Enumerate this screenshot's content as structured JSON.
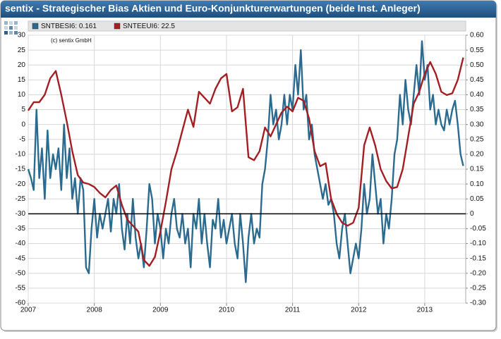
{
  "chart_data": {
    "type": "line",
    "title": "sentix - Strategischer Bias Aktien und Euro-Konjunkturerwartungen (beide Inst. Anleger)",
    "annotation": "(c) sentix GmbH",
    "xlim": [
      2007,
      2013.62
    ],
    "xticks": [
      2007,
      2008,
      2009,
      2010,
      2011,
      2012,
      2013
    ],
    "ylim": [
      -60,
      30
    ],
    "yticks": [
      30,
      25,
      20,
      15,
      10,
      5,
      0,
      -5,
      -10,
      -15,
      -20,
      -25,
      -30,
      -35,
      -40,
      -45,
      -50,
      -55,
      -60
    ],
    "y2lim": [
      -0.3,
      0.6
    ],
    "y2ticks": [
      {
        "value": 0.6,
        "label": "0.60"
      },
      {
        "value": 0.55,
        "label": "0.55"
      },
      {
        "value": 0.5,
        "label": "0.50"
      },
      {
        "value": 0.45,
        "label": "0.45"
      },
      {
        "value": 0.4,
        "label": "0.40"
      },
      {
        "value": 0.35,
        "label": "0.35"
      },
      {
        "value": 0.3,
        "label": "0.30"
      },
      {
        "value": 0.25,
        "label": "0.25"
      },
      {
        "value": 0.2,
        "label": "0.20"
      },
      {
        "value": 0.15,
        "label": "0.15"
      },
      {
        "value": 0.1,
        "label": "0.10"
      },
      {
        "value": 0.05,
        "label": "0.05"
      },
      {
        "value": 0,
        "label": "0"
      },
      {
        "value": -0.05,
        "label": "-0.05"
      },
      {
        "value": -0.1,
        "label": "-0.10"
      },
      {
        "value": -0.15,
        "label": "-0.15"
      },
      {
        "value": -0.2,
        "label": "-0.20"
      },
      {
        "value": -0.25,
        "label": "-0.25"
      },
      {
        "value": -0.3,
        "label": "-0.30"
      }
    ],
    "grid": true,
    "zero_line_y2": true,
    "series": [
      {
        "name": "SNTBESI6: 0.161",
        "color": "#2a6b8f",
        "axis": "y2",
        "x": [
          2007.0,
          2007.042,
          2007.083,
          2007.125,
          2007.167,
          2007.208,
          2007.25,
          2007.292,
          2007.333,
          2007.375,
          2007.417,
          2007.458,
          2007.5,
          2007.542,
          2007.583,
          2007.625,
          2007.667,
          2007.708,
          2007.75,
          2007.792,
          2007.833,
          2007.875,
          2007.917,
          2007.958,
          2008.0,
          2008.042,
          2008.083,
          2008.125,
          2008.167,
          2008.208,
          2008.25,
          2008.292,
          2008.333,
          2008.375,
          2008.417,
          2008.458,
          2008.5,
          2008.542,
          2008.583,
          2008.625,
          2008.667,
          2008.708,
          2008.75,
          2008.792,
          2008.833,
          2008.875,
          2008.917,
          2008.958,
          2009.0,
          2009.042,
          2009.083,
          2009.125,
          2009.167,
          2009.208,
          2009.25,
          2009.292,
          2009.333,
          2009.375,
          2009.417,
          2009.458,
          2009.5,
          2009.542,
          2009.583,
          2009.625,
          2009.667,
          2009.708,
          2009.75,
          2009.792,
          2009.833,
          2009.875,
          2009.917,
          2009.958,
          2010.0,
          2010.042,
          2010.083,
          2010.125,
          2010.167,
          2010.208,
          2010.25,
          2010.292,
          2010.333,
          2010.375,
          2010.417,
          2010.458,
          2010.5,
          2010.542,
          2010.583,
          2010.625,
          2010.667,
          2010.708,
          2010.75,
          2010.792,
          2010.833,
          2010.875,
          2010.917,
          2010.958,
          2011.0,
          2011.042,
          2011.083,
          2011.125,
          2011.167,
          2011.208,
          2011.25,
          2011.292,
          2011.333,
          2011.375,
          2011.417,
          2011.458,
          2011.5,
          2011.542,
          2011.583,
          2011.625,
          2011.667,
          2011.708,
          2011.75,
          2011.792,
          2011.833,
          2011.875,
          2011.917,
          2011.958,
          2012.0,
          2012.042,
          2012.083,
          2012.125,
          2012.167,
          2012.208,
          2012.25,
          2012.292,
          2012.333,
          2012.375,
          2012.417,
          2012.458,
          2012.5,
          2012.542,
          2012.583,
          2012.625,
          2012.667,
          2012.708,
          2012.75,
          2012.792,
          2012.833,
          2012.875,
          2012.917,
          2012.958,
          2013.0,
          2013.042,
          2013.083,
          2013.125,
          2013.167,
          2013.208,
          2013.25,
          2013.292,
          2013.333,
          2013.375,
          2013.417,
          2013.458,
          2013.5,
          2013.542,
          2013.583
        ],
        "values": [
          0.15,
          0.12,
          0.08,
          0.35,
          0.12,
          0.22,
          0.05,
          0.28,
          0.12,
          0.2,
          0.15,
          0.22,
          0.08,
          0.3,
          0.12,
          0.22,
          0.05,
          0.12,
          0.0,
          0.12,
          0.08,
          -0.18,
          -0.2,
          -0.05,
          0.05,
          -0.08,
          0.0,
          -0.05,
          0.0,
          0.05,
          -0.06,
          0.05,
          0.0,
          0.1,
          -0.05,
          -0.12,
          0.0,
          -0.1,
          0.05,
          -0.08,
          -0.15,
          -0.1,
          -0.18,
          -0.05,
          0.1,
          0.05,
          -0.1,
          0.0,
          -0.05,
          -0.15,
          -0.05,
          -0.1,
          0.0,
          0.05,
          -0.05,
          -0.08,
          0.0,
          -0.1,
          -0.05,
          -0.18,
          0.0,
          -0.05,
          0.05,
          -0.1,
          0.0,
          -0.1,
          -0.18,
          -0.02,
          -0.05,
          0.05,
          -0.08,
          -0.02,
          -0.1,
          -0.05,
          0.0,
          -0.1,
          -0.15,
          0.0,
          -0.1,
          -0.23,
          -0.08,
          0.0,
          -0.1,
          -0.05,
          -0.08,
          0.1,
          0.15,
          0.25,
          0.4,
          0.3,
          0.35,
          0.25,
          0.3,
          0.4,
          0.3,
          0.4,
          0.35,
          0.5,
          0.4,
          0.55,
          0.35,
          0.4,
          0.25,
          0.3,
          0.2,
          0.15,
          0.1,
          0.05,
          0.1,
          0.03,
          0.05,
          0.0,
          -0.1,
          -0.15,
          -0.05,
          0.0,
          -0.1,
          -0.2,
          -0.15,
          -0.1,
          -0.15,
          -0.05,
          0.1,
          0.0,
          0.05,
          0.2,
          0.1,
          0.0,
          0.05,
          -0.1,
          0.0,
          -0.05,
          0.05,
          0.2,
          0.25,
          0.4,
          0.3,
          0.45,
          0.35,
          0.3,
          0.4,
          0.5,
          0.4,
          0.58,
          0.45,
          0.5,
          0.35,
          0.4,
          0.3,
          0.35,
          0.3,
          0.28,
          0.35,
          0.3,
          0.35,
          0.38,
          0.3,
          0.2,
          0.161
        ]
      },
      {
        "name": "SNTEEUI6: 22.5",
        "color": "#a31f23",
        "axis": "y",
        "x": [
          2007.0,
          2007.083,
          2007.167,
          2007.25,
          2007.333,
          2007.417,
          2007.5,
          2007.583,
          2007.667,
          2007.75,
          2007.833,
          2007.917,
          2008.0,
          2008.083,
          2008.167,
          2008.25,
          2008.333,
          2008.417,
          2008.5,
          2008.583,
          2008.667,
          2008.75,
          2008.833,
          2008.917,
          2009.0,
          2009.083,
          2009.167,
          2009.25,
          2009.333,
          2009.417,
          2009.5,
          2009.583,
          2009.667,
          2009.75,
          2009.833,
          2009.917,
          2010.0,
          2010.083,
          2010.167,
          2010.25,
          2010.333,
          2010.417,
          2010.5,
          2010.583,
          2010.667,
          2010.75,
          2010.833,
          2010.917,
          2011.0,
          2011.083,
          2011.167,
          2011.25,
          2011.333,
          2011.417,
          2011.5,
          2011.583,
          2011.667,
          2011.75,
          2011.833,
          2011.917,
          2012.0,
          2012.083,
          2012.167,
          2012.25,
          2012.333,
          2012.417,
          2012.5,
          2012.583,
          2012.667,
          2012.75,
          2012.833,
          2012.917,
          2013.0,
          2013.083,
          2013.167,
          2013.25,
          2013.333,
          2013.417,
          2013.5,
          2013.583
        ],
        "values": [
          4.7,
          7.5,
          7.5,
          10,
          15.5,
          18,
          10,
          1,
          -9,
          -17,
          -19.5,
          -20,
          -21,
          -23,
          -24.5,
          -22,
          -20.5,
          -27,
          -32,
          -34,
          -36,
          -45.5,
          -47.5,
          -44.5,
          -36,
          -26,
          -15,
          -9,
          -2,
          5,
          -0.8,
          11,
          9,
          7,
          12,
          15.5,
          17,
          4.4,
          5.8,
          12,
          -11,
          -12,
          -9,
          -1,
          -4,
          0,
          4,
          6,
          4.4,
          9,
          8,
          2,
          -9,
          -14,
          -13,
          -25,
          -30,
          -33,
          -34,
          -33,
          -28,
          -7,
          -1,
          -7,
          -15,
          -19,
          -21.5,
          -21,
          -15,
          -4,
          7,
          11,
          17,
          21,
          17,
          11,
          9.9,
          10.5,
          15,
          22.5
        ]
      }
    ]
  }
}
